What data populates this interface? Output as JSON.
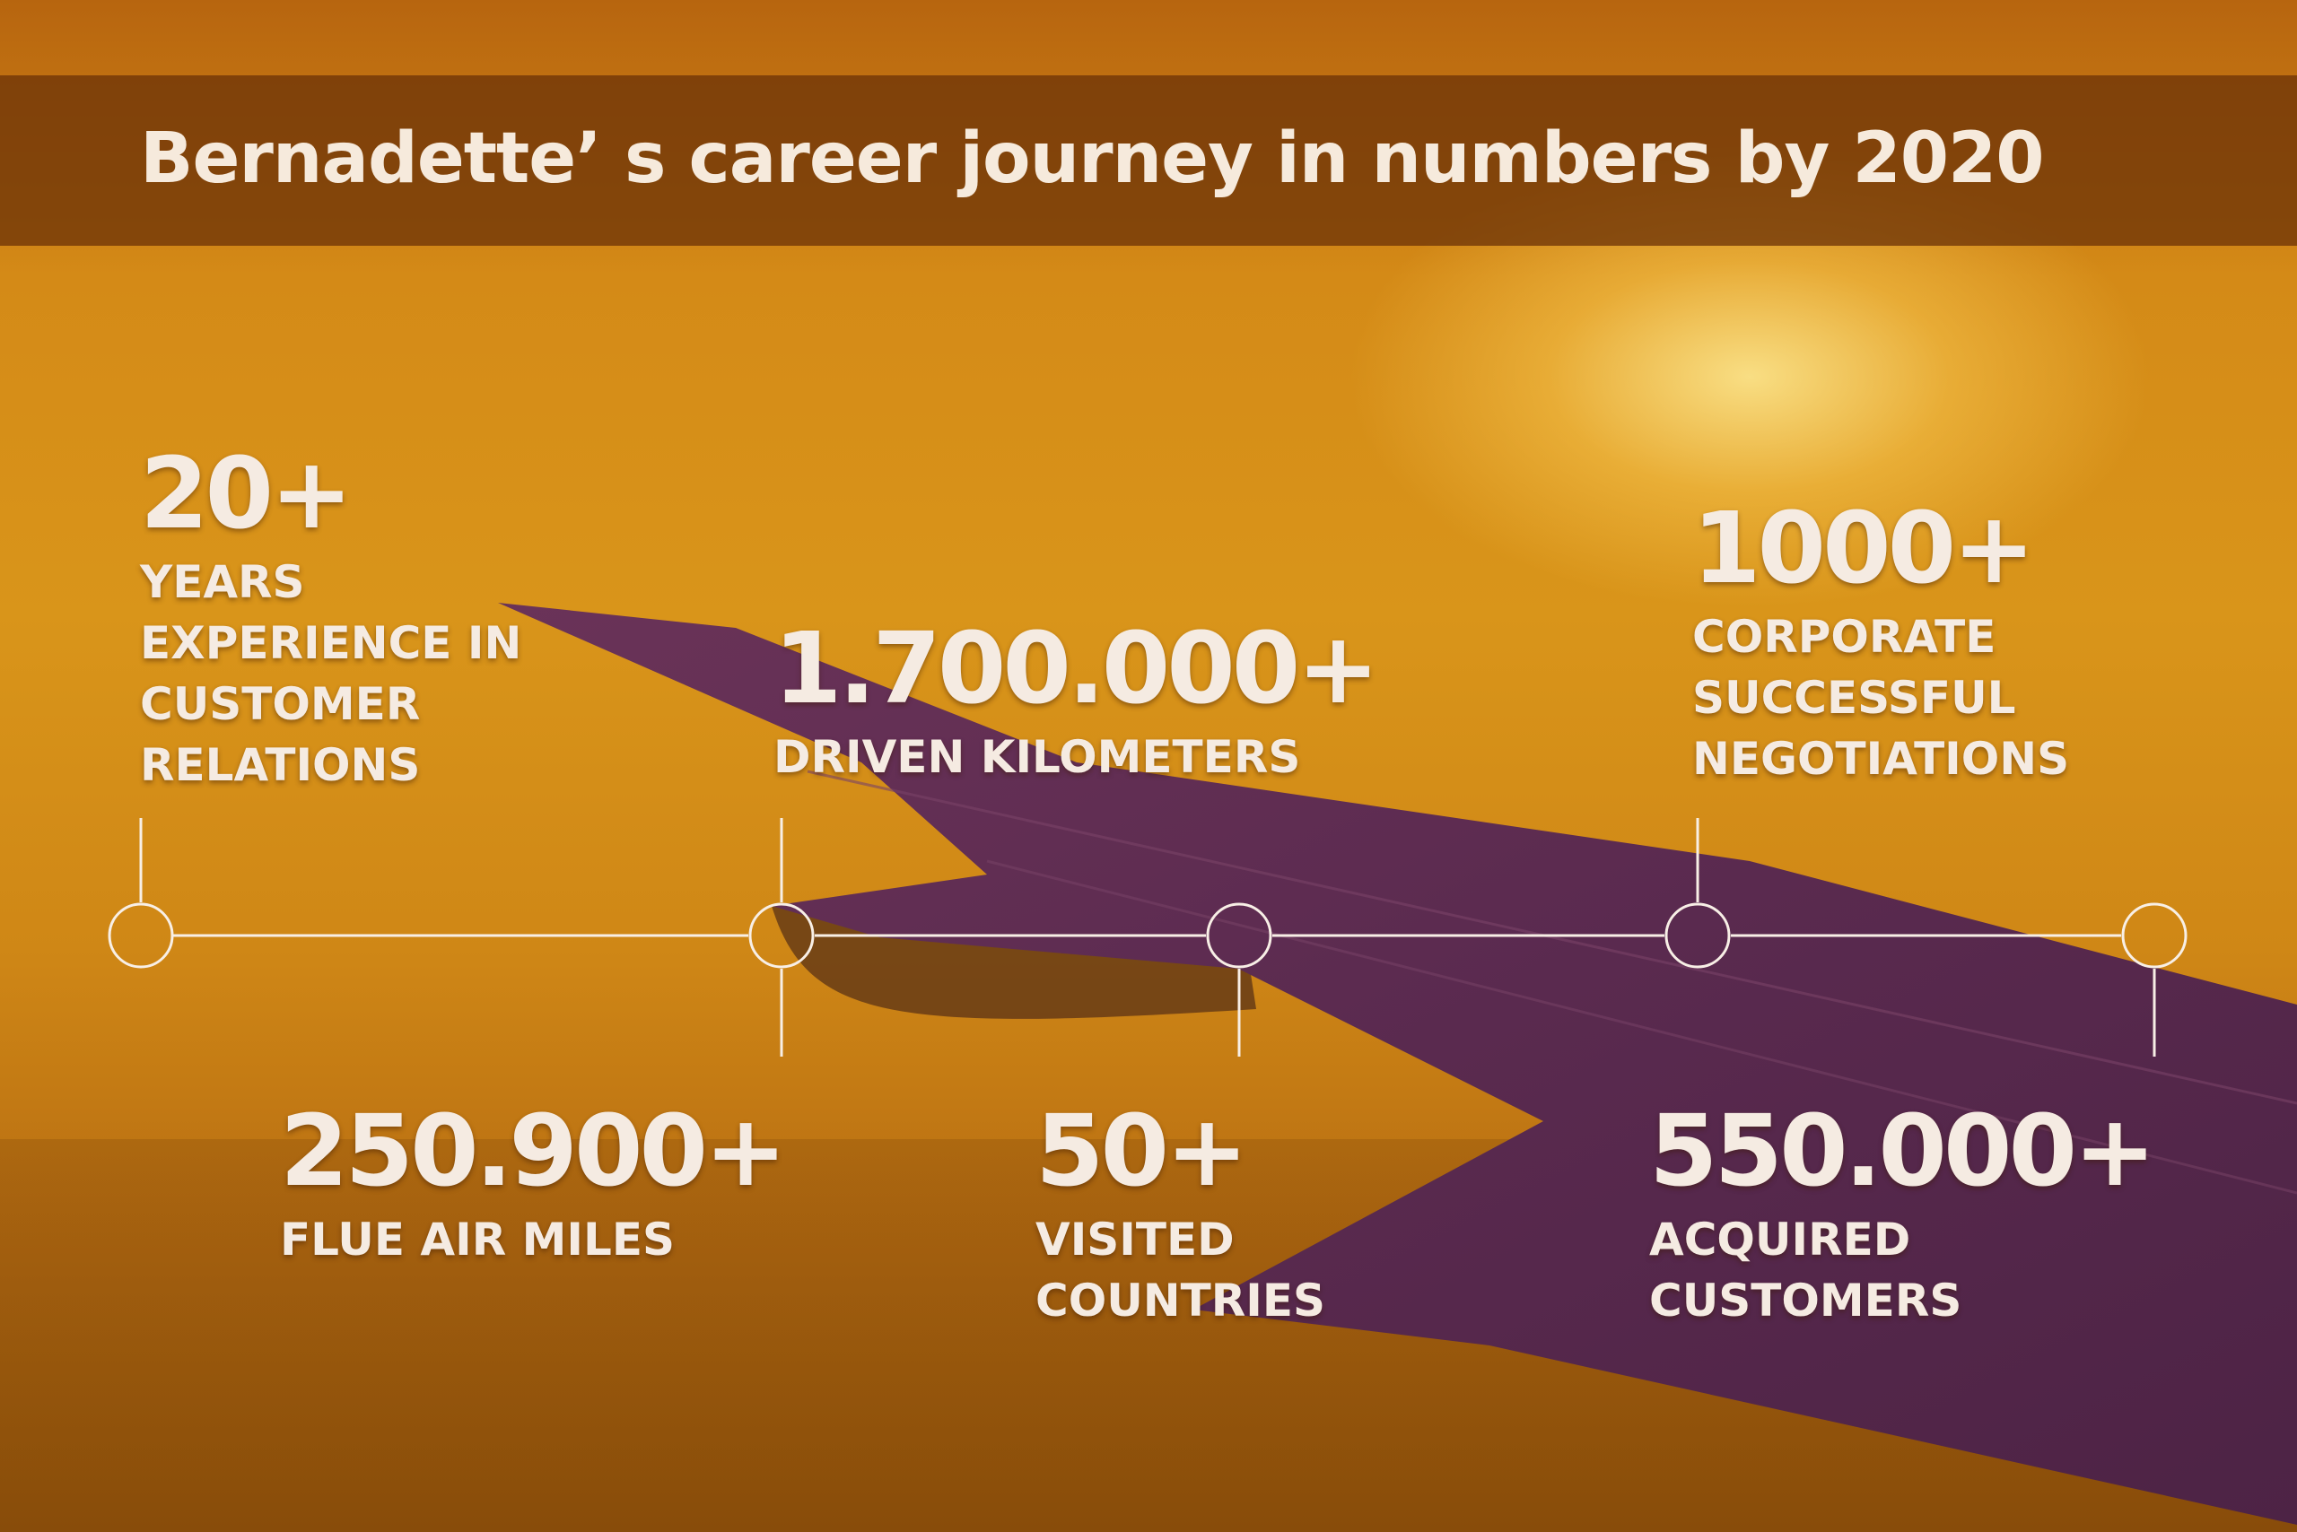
{
  "title": "Bernadette’ s career journey in numbers by 2020",
  "colors": {
    "text": "#f5ebe2",
    "title_bar": "#6e3408",
    "sky": "#d9951a",
    "wing": "#5a2b4e"
  },
  "stats": [
    {
      "value": "20+",
      "label": "YEARS\nEXPERIENCE IN\nCUSTOMER\nRELATIONS"
    },
    {
      "value": "250.900+",
      "label": "FLUE AIR MILES"
    },
    {
      "value": "1.700.000+",
      "label": "DRIVEN KILOMETERS"
    },
    {
      "value": "50+",
      "label": "VISITED\nCOUNTRIES"
    },
    {
      "value": "1000+",
      "label": "CORPORATE\nSUCCESSFUL\nNEGOTIATIONS"
    },
    {
      "value": "550.000+",
      "label": "ACQUIRED\nCUSTOMERS"
    }
  ]
}
